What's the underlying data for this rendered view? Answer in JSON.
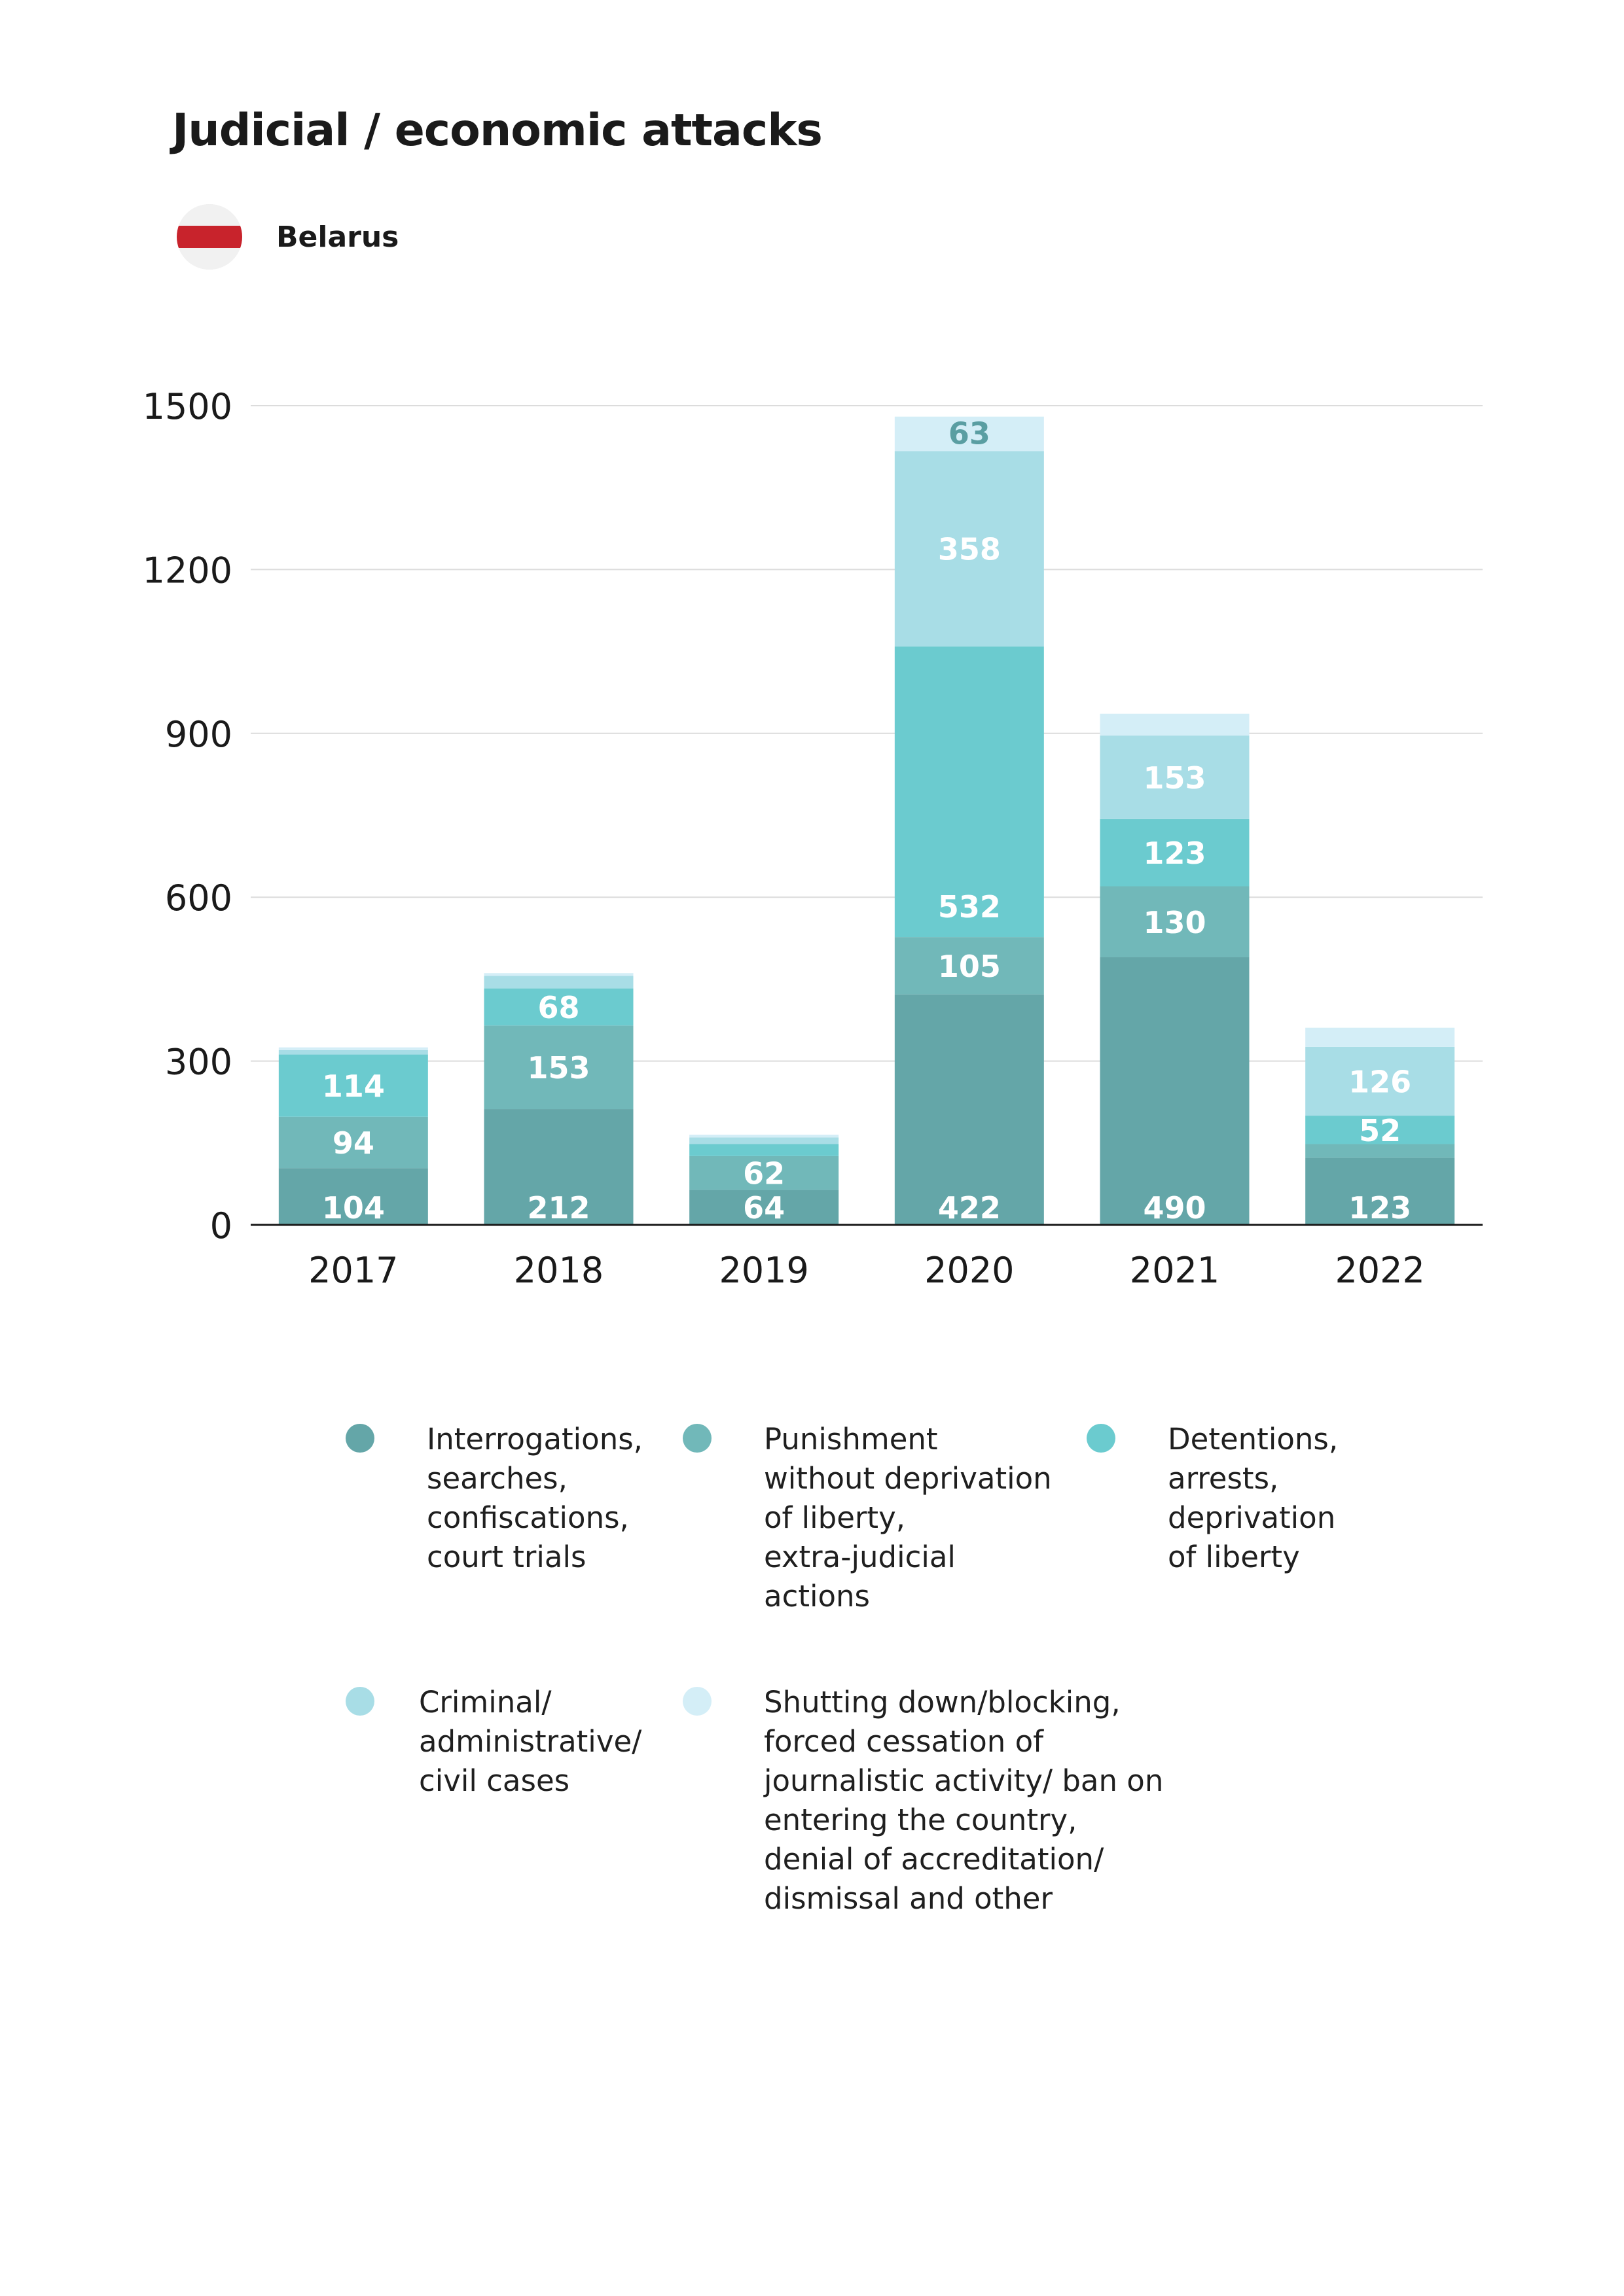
{
  "title": "Judicial / economic attacks",
  "country": "Belarus",
  "icons": {
    "flag": "belarus-flag-icon"
  },
  "chart_data": {
    "type": "bar",
    "stacked": true,
    "categories": [
      "2017",
      "2018",
      "2019",
      "2020",
      "2021",
      "2022"
    ],
    "ylim": [
      0,
      1500
    ],
    "yticks": [
      0,
      300,
      600,
      900,
      1200,
      1500
    ],
    "grid": true,
    "legend_position": "bottom",
    "series": [
      {
        "name": "Interrogations, searches, confiscations, court trials",
        "color": "#64a6a8",
        "values": [
          104,
          212,
          64,
          422,
          490,
          123
        ],
        "labels": [
          "104",
          "212",
          "64",
          "422",
          "490",
          "123"
        ]
      },
      {
        "name": "Punishment without deprivation of liberty, extra-judicial actions",
        "color": "#71b8b9",
        "values": [
          94,
          153,
          62,
          105,
          130,
          25
        ],
        "labels": [
          "94",
          "153",
          "62",
          "105",
          "130",
          ""
        ]
      },
      {
        "name": "Detentions, arrests, deprivation of liberty",
        "color": "#6bcbcf",
        "values": [
          114,
          68,
          22,
          532,
          123,
          52
        ],
        "labels": [
          "114",
          "68",
          "",
          "532",
          "123",
          "52"
        ]
      },
      {
        "name": "Criminal/ administrative/ civil cases",
        "color": "#a8dde6",
        "values": [
          8,
          23,
          12,
          358,
          153,
          126
        ],
        "labels": [
          "",
          "",
          "",
          "358",
          "153",
          "126"
        ]
      },
      {
        "name": "Shutting down/blocking, forced cessation of journalistic activity/ ban on entering the country, denial of accreditation/ dismissal and other",
        "color": "#d4eef7",
        "values": [
          5,
          5,
          5,
          63,
          40,
          35
        ],
        "labels": [
          "",
          "",
          "",
          "63",
          "",
          ""
        ]
      }
    ]
  },
  "legend": [
    {
      "text": "Interrogations,\nsearches,\nconfiscations,\ncourt trials",
      "color": "#64a6a8"
    },
    {
      "text": "Punishment\nwithout deprivation\nof liberty,\nextra-judicial\nactions",
      "color": "#71b8b9"
    },
    {
      "text": "Detentions,\narrests,\ndeprivation\nof liberty",
      "color": "#6bcbcf"
    },
    {
      "text": "Criminal/\nadministrative/\ncivil cases",
      "color": "#a8dde6"
    },
    {
      "text": "Shutting down/blocking,\nforced cessation of\njournalistic activity/ ban on\nentering the country,\ndenial of accreditation/\ndismissal and other",
      "color": "#d4eef7"
    }
  ]
}
